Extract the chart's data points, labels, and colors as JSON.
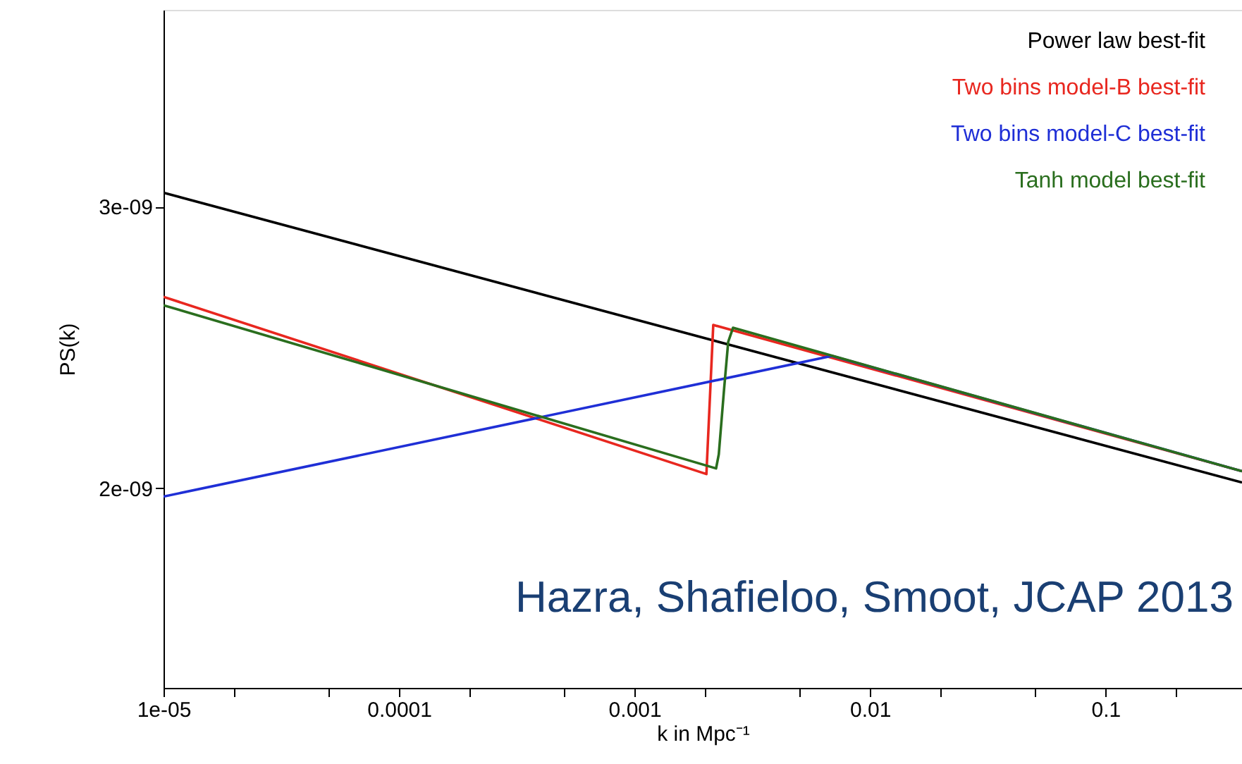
{
  "chart_data": {
    "type": "line",
    "xlabel": "k in Mpc⁻¹",
    "ylabel": "PS(k)",
    "log": "x",
    "xlim": [
      1e-05,
      0.38
    ],
    "ylim": [
      1.29e-09,
      3.7e-09
    ],
    "xticks": [
      {
        "value": 1e-05,
        "label": "1e-05"
      },
      {
        "value": 2e-05,
        "label": null
      },
      {
        "value": 5e-05,
        "label": null
      },
      {
        "value": 0.0001,
        "label": "0.0001"
      },
      {
        "value": 0.0002,
        "label": null
      },
      {
        "value": 0.0005,
        "label": null
      },
      {
        "value": 0.001,
        "label": "0.001"
      },
      {
        "value": 0.002,
        "label": null
      },
      {
        "value": 0.005,
        "label": null
      },
      {
        "value": 0.01,
        "label": "0.01"
      },
      {
        "value": 0.02,
        "label": null
      },
      {
        "value": 0.05,
        "label": null
      },
      {
        "value": 0.1,
        "label": "0.1"
      },
      {
        "value": 0.2,
        "label": null
      }
    ],
    "yticks": [
      {
        "value": 2e-09,
        "label": "2e-09"
      },
      {
        "value": 3e-09,
        "label": "3e-09"
      }
    ],
    "grid": false,
    "legend": "top right",
    "marker": "none",
    "line_style": "solid",
    "series": [
      {
        "name": "Power law best-fit",
        "color": "#000000",
        "x": [
          1e-05,
          0.38
        ],
        "values": [
          3.05e-09,
          2.02e-09
        ]
      },
      {
        "name": "Two bins model-B best-fit",
        "color": "#e8271f",
        "x": [
          1e-05,
          0.00202,
          0.00216,
          0.38
        ],
        "values": [
          2.68e-09,
          2.05e-09,
          2.58e-09,
          2.06e-09
        ]
      },
      {
        "name": "Two bins model-C best-fit",
        "color": "#1f2fd6",
        "x": [
          1e-05,
          0.00689,
          0.38
        ],
        "values": [
          1.97e-09,
          2.47e-09,
          2.06e-09
        ]
      },
      {
        "name": "Tanh model best-fit",
        "color": "#2a6e1e",
        "x": [
          1e-05,
          0.00222,
          0.00228,
          0.0024,
          0.0025,
          0.00262,
          0.38
        ],
        "values": [
          2.65e-09,
          2.07e-09,
          2.12e-09,
          2.35e-09,
          2.52e-09,
          2.57e-09,
          2.06e-09
        ]
      }
    ],
    "annotations": [
      "Hazra, Shafieloo, Smoot, JCAP 2013"
    ]
  }
}
